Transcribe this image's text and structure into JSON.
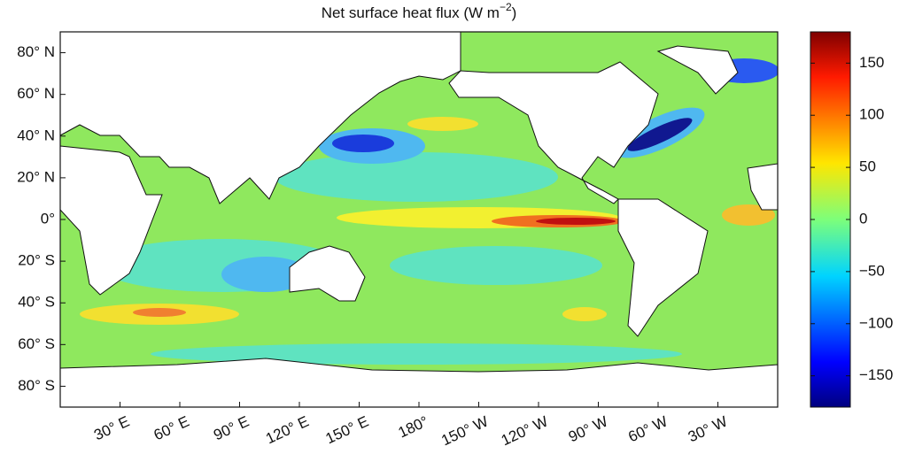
{
  "map": {
    "title": {
      "text": "Net surface heat flux (W m",
      "superscript": "−2",
      "close": ")"
    },
    "latitude_range": [
      -90,
      90
    ],
    "longitude_range": [
      0,
      360
    ],
    "latitude_ticks": [
      {
        "value": 80,
        "label": "80° N"
      },
      {
        "value": 60,
        "label": "60° N"
      },
      {
        "value": 40,
        "label": "40° N"
      },
      {
        "value": 20,
        "label": "20° N"
      },
      {
        "value": 0,
        "label": "0°"
      },
      {
        "value": -20,
        "label": "20° S"
      },
      {
        "value": -40,
        "label": "40° S"
      },
      {
        "value": -60,
        "label": "60° S"
      },
      {
        "value": -80,
        "label": "80° S"
      }
    ],
    "longitude_ticks": [
      {
        "value": 30,
        "label": "30° E"
      },
      {
        "value": 60,
        "label": "60° E"
      },
      {
        "value": 90,
        "label": "90° E"
      },
      {
        "value": 120,
        "label": "120° E"
      },
      {
        "value": 150,
        "label": "150° E"
      },
      {
        "value": 180,
        "label": "180°"
      },
      {
        "value": 210,
        "label": "150° W"
      },
      {
        "value": 240,
        "label": "120° W"
      },
      {
        "value": 270,
        "label": "90° W"
      },
      {
        "value": 300,
        "label": "60° W"
      },
      {
        "value": 330,
        "label": "30° W"
      }
    ],
    "colorbar": {
      "range": [
        -180,
        180
      ],
      "ticks": [
        150,
        100,
        50,
        0,
        {
          "value": -50,
          "label": "−50"
        },
        {
          "value": -100,
          "label": "−100"
        },
        {
          "value": -150,
          "label": "−150"
        }
      ]
    }
  }
}
